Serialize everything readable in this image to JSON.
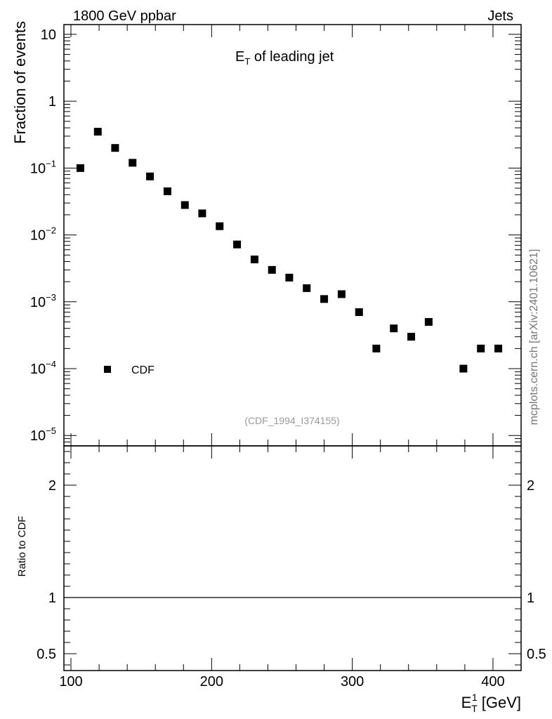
{
  "header": {
    "left": "1800 GeV ppbar",
    "right": "Jets"
  },
  "plot_title": {
    "main": "E",
    "sub": "T",
    "rest": " of leading jet"
  },
  "watermark": "mcplots.cern.ch [arXiv:2401.10621]",
  "analysis_id": "(CDF_1994_I374155)",
  "upper_axis": {
    "ylabel": "Fraction of events",
    "scale": "log",
    "ylim": [
      7e-06,
      14
    ],
    "ticks": [
      {
        "value": 10,
        "base": "10",
        "exp": ""
      },
      {
        "value": 1,
        "base": "1",
        "exp": ""
      },
      {
        "value": 0.1,
        "base": "10",
        "exp": "−1"
      },
      {
        "value": 0.01,
        "base": "10",
        "exp": "−2"
      },
      {
        "value": 0.001,
        "base": "10",
        "exp": "−3"
      },
      {
        "value": 0.0001,
        "base": "10",
        "exp": "−4"
      },
      {
        "value": 1e-05,
        "base": "10",
        "exp": "−5"
      }
    ]
  },
  "lower_axis": {
    "ylabel": "Ratio to CDF",
    "ylim": [
      0.35,
      2.35
    ],
    "ticks": [
      {
        "value": 2,
        "label": "2"
      },
      {
        "value": 1,
        "label": "1"
      },
      {
        "value": 0.5,
        "label": "0.5"
      }
    ],
    "reference_line": 1
  },
  "x_axis": {
    "label_main": "E",
    "label_sub": "T",
    "label_sup": "1",
    "label_unit": " [GeV]",
    "xlim": [
      95,
      420
    ],
    "ticks": [
      100,
      200,
      300,
      400
    ],
    "tick_labels": [
      "100",
      "200",
      "300",
      "400"
    ]
  },
  "legend": {
    "position": "lower-left",
    "entries": [
      {
        "name": "CDF",
        "marker": "square",
        "color": "#000000"
      }
    ]
  },
  "chart_data": {
    "type": "scatter",
    "title": "E_T of leading jet",
    "xlabel": "E_T^1 [GeV]",
    "ylabel": "Fraction of events",
    "yscale": "log",
    "xlim": [
      95,
      420
    ],
    "ylim": [
      7e-06,
      14
    ],
    "series": [
      {
        "name": "CDF",
        "color": "#000000",
        "marker": "square",
        "x": [
          106.7,
          119.1,
          131.4,
          143.8,
          156.2,
          168.6,
          181.0,
          193.3,
          205.7,
          218.1,
          230.5,
          242.9,
          255.2,
          267.6,
          280.0,
          292.4,
          304.8,
          317.1,
          329.5,
          341.9,
          354.3,
          379.0,
          391.4,
          403.8
        ],
        "y": [
          0.1,
          0.35,
          0.2,
          0.12,
          0.075,
          0.045,
          0.028,
          0.021,
          0.0135,
          0.0072,
          0.0043,
          0.003,
          0.0023,
          0.0016,
          0.0011,
          0.0013,
          0.0007,
          0.0002,
          0.0004,
          0.0003,
          0.0005,
          0.0001,
          0.0002,
          0.0002
        ]
      }
    ]
  }
}
